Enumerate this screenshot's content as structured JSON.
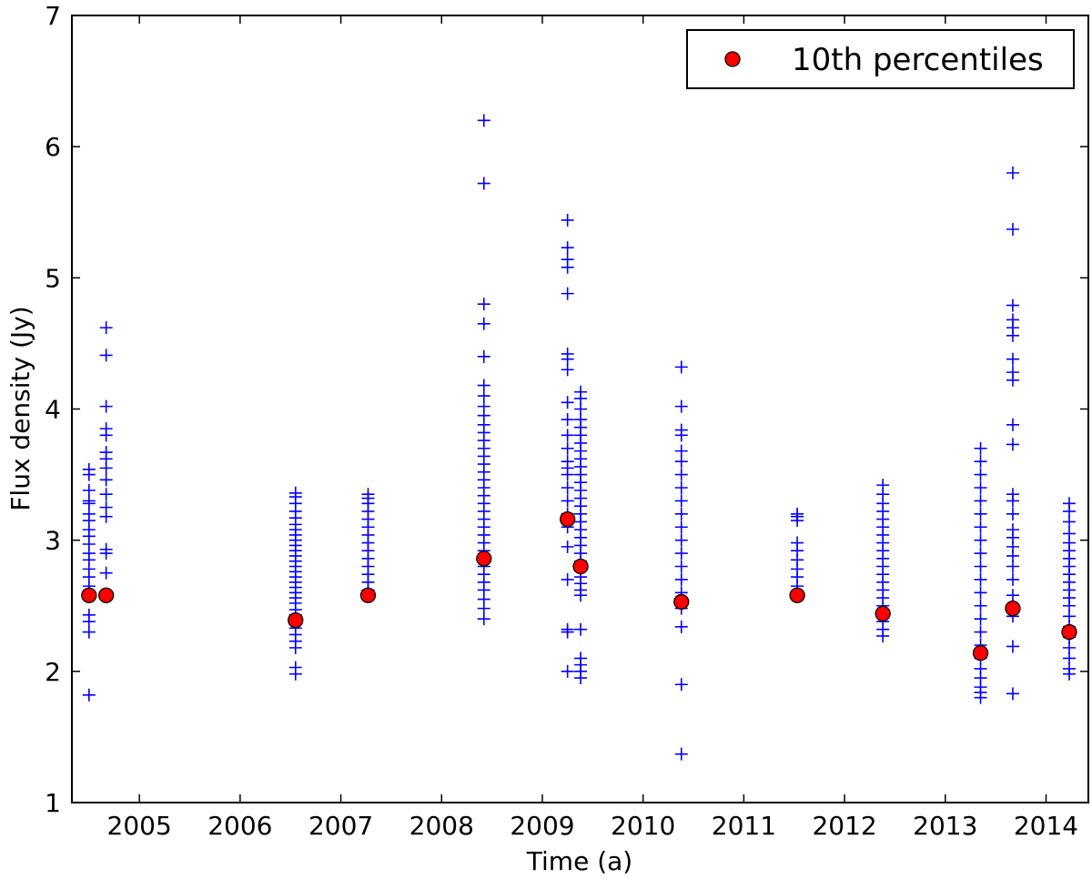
{
  "chart_data": {
    "type": "scatter",
    "title": "",
    "xlabel": "Time (a)",
    "ylabel": "Flux density (Jy)",
    "xlim": [
      2004.33,
      2014.42
    ],
    "ylim": [
      1,
      7
    ],
    "x_ticks": [
      2005,
      2006,
      2007,
      2008,
      2009,
      2010,
      2011,
      2012,
      2013,
      2014
    ],
    "x_tick_labels": [
      "2005",
      "2006",
      "2007",
      "2008",
      "2009",
      "2010",
      "2011",
      "2012",
      "2013",
      "2014"
    ],
    "y_ticks": [
      1,
      2,
      3,
      4,
      5,
      6,
      7
    ],
    "y_tick_labels": [
      "1",
      "2",
      "3",
      "4",
      "5",
      "6",
      "7"
    ],
    "grid": false,
    "legend": {
      "position": "top-right",
      "entries": [
        {
          "label": "10th percentiles",
          "marker": "circle",
          "color": "#ff0000"
        }
      ]
    },
    "series": [
      {
        "name": "observations",
        "marker": "plus",
        "color": "#0000ff",
        "groups": [
          {
            "x": 2004.5,
            "values": [
              1.82,
              2.3,
              2.38,
              2.43,
              2.58,
              2.65,
              2.72,
              2.78,
              2.85,
              2.9,
              2.97,
              3.03,
              3.08,
              3.15,
              3.2,
              3.28,
              3.3,
              3.38,
              3.5,
              3.54
            ]
          },
          {
            "x": 2004.67,
            "values": [
              2.58,
              2.75,
              2.9,
              2.93,
              3.18,
              3.25,
              3.35,
              3.46,
              3.55,
              3.62,
              3.67,
              3.8,
              3.85,
              4.02,
              4.41,
              4.62
            ]
          },
          {
            "x": 2006.55,
            "values": [
              1.98,
              2.03,
              2.18,
              2.23,
              2.28,
              2.33,
              2.38,
              2.43,
              2.47,
              2.52,
              2.56,
              2.6,
              2.64,
              2.68,
              2.72,
              2.76,
              2.8,
              2.84,
              2.88,
              2.92,
              2.96,
              3.0,
              3.04,
              3.08,
              3.12,
              3.17,
              3.22,
              3.28,
              3.33,
              3.36
            ]
          },
          {
            "x": 2007.27,
            "values": [
              2.58,
              2.62,
              2.68,
              2.74,
              2.8,
              2.86,
              2.92,
              2.98,
              3.04,
              3.1,
              3.16,
              3.22,
              3.28,
              3.32,
              3.35
            ]
          },
          {
            "x": 2008.42,
            "values": [
              2.4,
              2.48,
              2.55,
              2.62,
              2.68,
              2.74,
              2.8,
              2.86,
              2.92,
              2.98,
              3.04,
              3.1,
              3.16,
              3.22,
              3.28,
              3.34,
              3.4,
              3.46,
              3.52,
              3.58,
              3.64,
              3.7,
              3.76,
              3.82,
              3.88,
              3.95,
              4.02,
              4.1,
              4.18,
              4.4,
              4.65,
              4.8,
              5.72,
              6.2
            ]
          },
          {
            "x": 2009.25,
            "values": [
              2.0,
              2.3,
              2.32,
              2.7,
              2.95,
              3.1,
              3.2,
              3.3,
              3.4,
              3.5,
              3.55,
              3.6,
              3.7,
              3.8,
              3.92,
              4.05,
              4.3,
              4.38,
              4.42,
              4.88,
              5.08,
              5.14,
              5.23,
              5.44
            ]
          },
          {
            "x": 2009.38,
            "values": [
              1.95,
              2.0,
              2.05,
              2.1,
              2.32,
              2.58,
              2.62,
              2.67,
              2.72,
              2.78,
              2.84,
              2.9,
              2.96,
              3.02,
              3.08,
              3.14,
              3.2,
              3.26,
              3.32,
              3.38,
              3.44,
              3.5,
              3.56,
              3.62,
              3.68,
              3.74,
              3.8,
              3.86,
              3.92,
              4.0,
              4.08,
              4.13
            ]
          },
          {
            "x": 2010.38,
            "values": [
              1.37,
              1.9,
              2.34,
              2.48,
              2.6,
              2.7,
              2.8,
              2.9,
              3.0,
              3.1,
              3.2,
              3.3,
              3.4,
              3.5,
              3.6,
              3.68,
              3.8,
              3.84,
              4.02,
              4.32
            ]
          },
          {
            "x": 2011.53,
            "values": [
              2.58,
              2.65,
              2.72,
              2.78,
              2.85,
              2.92,
              2.98,
              3.15,
              3.18,
              3.2
            ]
          },
          {
            "x": 2012.38,
            "values": [
              2.27,
              2.32,
              2.38,
              2.44,
              2.5,
              2.56,
              2.62,
              2.68,
              2.74,
              2.8,
              2.86,
              2.92,
              2.98,
              3.04,
              3.1,
              3.16,
              3.22,
              3.28,
              3.35,
              3.42
            ]
          },
          {
            "x": 2013.35,
            "values": [
              1.8,
              1.84,
              1.88,
              1.95,
              2.02,
              2.1,
              2.2,
              2.3,
              2.4,
              2.5,
              2.6,
              2.7,
              2.8,
              2.9,
              3.0,
              3.1,
              3.2,
              3.3,
              3.4,
              3.5,
              3.6,
              3.7
            ]
          },
          {
            "x": 2013.67,
            "values": [
              1.83,
              2.19,
              2.42,
              2.5,
              2.58,
              2.7,
              2.8,
              2.88,
              2.95,
              3.02,
              3.08,
              3.2,
              3.3,
              3.35,
              3.73,
              3.88,
              4.22,
              4.28,
              4.38,
              4.56,
              4.62,
              4.68,
              4.79,
              5.37,
              5.8
            ]
          },
          {
            "x": 2014.23,
            "values": [
              1.98,
              2.02,
              2.1,
              2.18,
              2.26,
              2.34,
              2.42,
              2.5,
              2.56,
              2.62,
              2.68,
              2.74,
              2.8,
              2.86,
              2.92,
              2.98,
              3.05,
              3.14,
              3.22,
              3.28
            ]
          }
        ]
      },
      {
        "name": "10th percentiles",
        "marker": "circle",
        "color": "#ff0000",
        "x": [
          2004.5,
          2004.67,
          2006.55,
          2007.27,
          2008.42,
          2009.25,
          2009.38,
          2010.38,
          2011.53,
          2012.38,
          2013.35,
          2013.67,
          2014.23
        ],
        "values": [
          2.58,
          2.58,
          2.39,
          2.58,
          2.86,
          3.16,
          2.8,
          2.53,
          2.58,
          2.44,
          2.14,
          2.48,
          2.3
        ]
      }
    ]
  }
}
